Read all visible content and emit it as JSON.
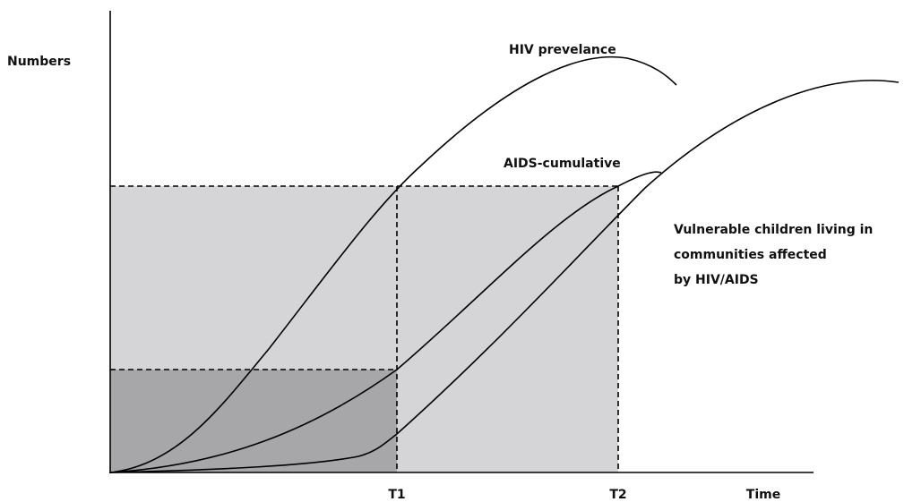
{
  "axes": {
    "y_label": "Numbers",
    "x_label": "Time",
    "markers": [
      "T1",
      "T2"
    ]
  },
  "curves": [
    {
      "label": "HIV prevelance"
    },
    {
      "label": "AIDS-cumulative"
    },
    {
      "label_lines": [
        "Vulnerable children living in",
        "communities affected",
        "by HIV/AIDS"
      ]
    }
  ]
}
